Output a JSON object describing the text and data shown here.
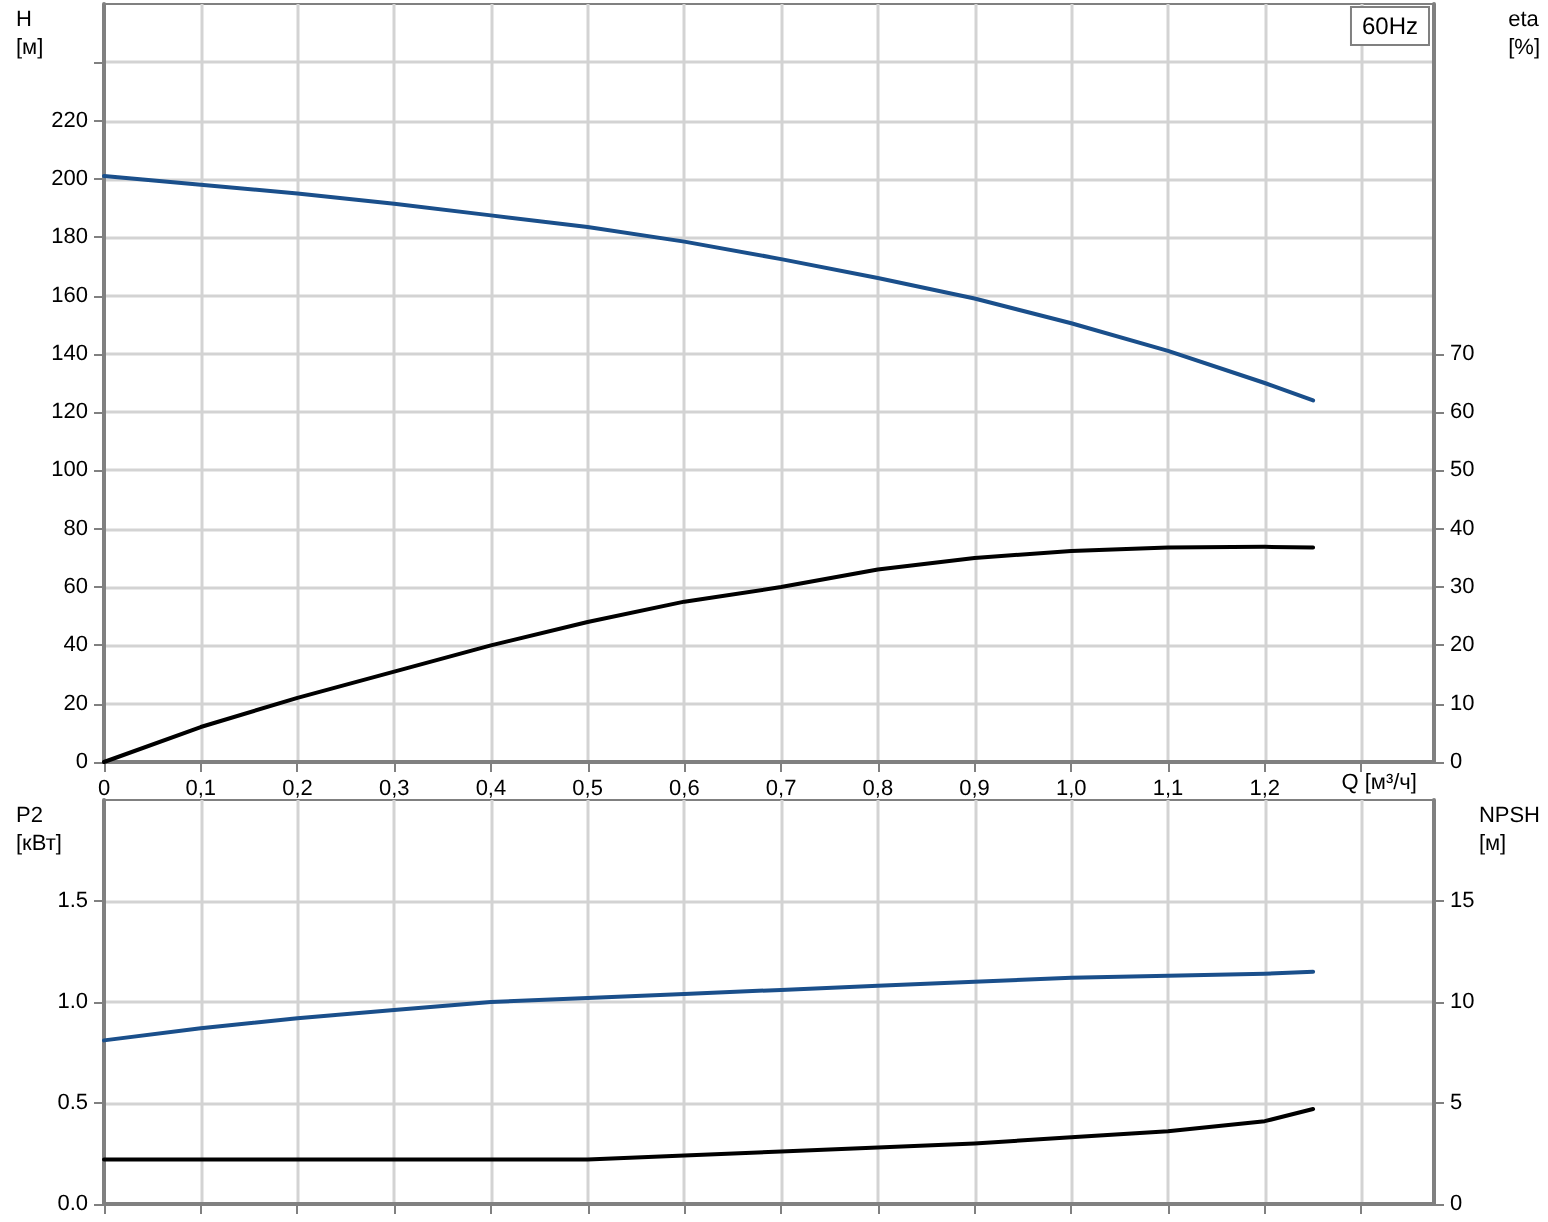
{
  "chart_data": [
    {
      "type": "line",
      "xlabel": "Q [м³/ч]",
      "ylabel": "H [м]",
      "y2label": "eta [%]",
      "annotations": [
        "60Hz"
      ],
      "x": [
        0,
        0.1,
        0.2,
        0.3,
        0.4,
        0.5,
        0.6,
        0.7,
        0.8,
        0.9,
        1.0,
        1.1,
        1.2,
        1.25
      ],
      "series": [
        {
          "color": "#1a4f8b",
          "values": [
            201,
            198,
            195,
            191.5,
            187.5,
            183.5,
            178.5,
            172.5,
            166,
            159,
            150.5,
            141,
            130,
            124
          ]
        },
        {
          "color": "#000000",
          "axis": "y2",
          "values": [
            0,
            6,
            11,
            15.5,
            20,
            24,
            27.5,
            30,
            33,
            35,
            36.2,
            36.8,
            36.9,
            36.8
          ]
        }
      ],
      "xlim": [
        0,
        1.375
      ],
      "xticks": [
        0,
        {
          "value": 0.1,
          "label": "0,1"
        },
        {
          "value": 0.2,
          "label": "0,2"
        },
        {
          "value": 0.3,
          "label": "0,3"
        },
        {
          "value": 0.4,
          "label": "0,4"
        },
        {
          "value": 0.5,
          "label": "0,5"
        },
        {
          "value": 0.6,
          "label": "0,6"
        },
        {
          "value": 0.7,
          "label": "0,7"
        },
        {
          "value": 0.8,
          "label": "0,8"
        },
        {
          "value": 0.9,
          "label": "0,9"
        },
        {
          "value": 1.0,
          "label": "1,0"
        },
        {
          "value": 1.1,
          "label": "1,1"
        },
        {
          "value": 1.2,
          "label": "1,2"
        },
        {
          "value": 1.3,
          "label": null
        }
      ],
      "ylim": [
        0,
        260
      ],
      "yticks": [
        0,
        20,
        40,
        60,
        80,
        100,
        120,
        140,
        160,
        180,
        200,
        220,
        {
          "value": 240,
          "label": null
        }
      ],
      "y2lim": [
        0,
        130
      ],
      "y2ticks": [
        0,
        10,
        20,
        30,
        40,
        50,
        60,
        70
      ],
      "grid": true,
      "marker": "none",
      "line_style": "solid"
    },
    {
      "type": "line",
      "ylabel": "P2 [кВт]",
      "y2label": "NPSH [м]",
      "x": [
        0,
        0.1,
        0.2,
        0.3,
        0.4,
        0.5,
        0.6,
        0.7,
        0.8,
        0.9,
        1.0,
        1.1,
        1.2,
        1.25
      ],
      "series": [
        {
          "color": "#1a4f8b",
          "values": [
            0.81,
            0.87,
            0.92,
            0.96,
            1.0,
            1.02,
            1.04,
            1.06,
            1.08,
            1.1,
            1.12,
            1.13,
            1.14,
            1.15
          ]
        },
        {
          "color": "#000000",
          "axis": "y2",
          "values": [
            2.2,
            2.2,
            2.2,
            2.2,
            2.2,
            2.2,
            2.4,
            2.6,
            2.8,
            3.0,
            3.3,
            3.6,
            4.1,
            4.7
          ]
        }
      ],
      "xlim": [
        0,
        1.375
      ],
      "xticks": [
        0,
        0.1,
        0.2,
        0.3,
        0.4,
        0.5,
        0.6,
        0.7,
        0.8,
        0.9,
        1.0,
        1.1,
        1.2,
        1.3
      ],
      "ylim": [
        0,
        2
      ],
      "yticks": [
        {
          "value": 0,
          "label": "0.0"
        },
        {
          "value": 0.5,
          "label": "0.5"
        },
        {
          "value": 1,
          "label": "1.0"
        },
        {
          "value": 1.5,
          "label": "1.5"
        }
      ],
      "y2lim": [
        0,
        20
      ],
      "y2ticks": [
        0,
        5,
        10,
        15
      ],
      "tick_labels": "y",
      "grid": true,
      "marker": "none",
      "line_style": "solid"
    }
  ]
}
